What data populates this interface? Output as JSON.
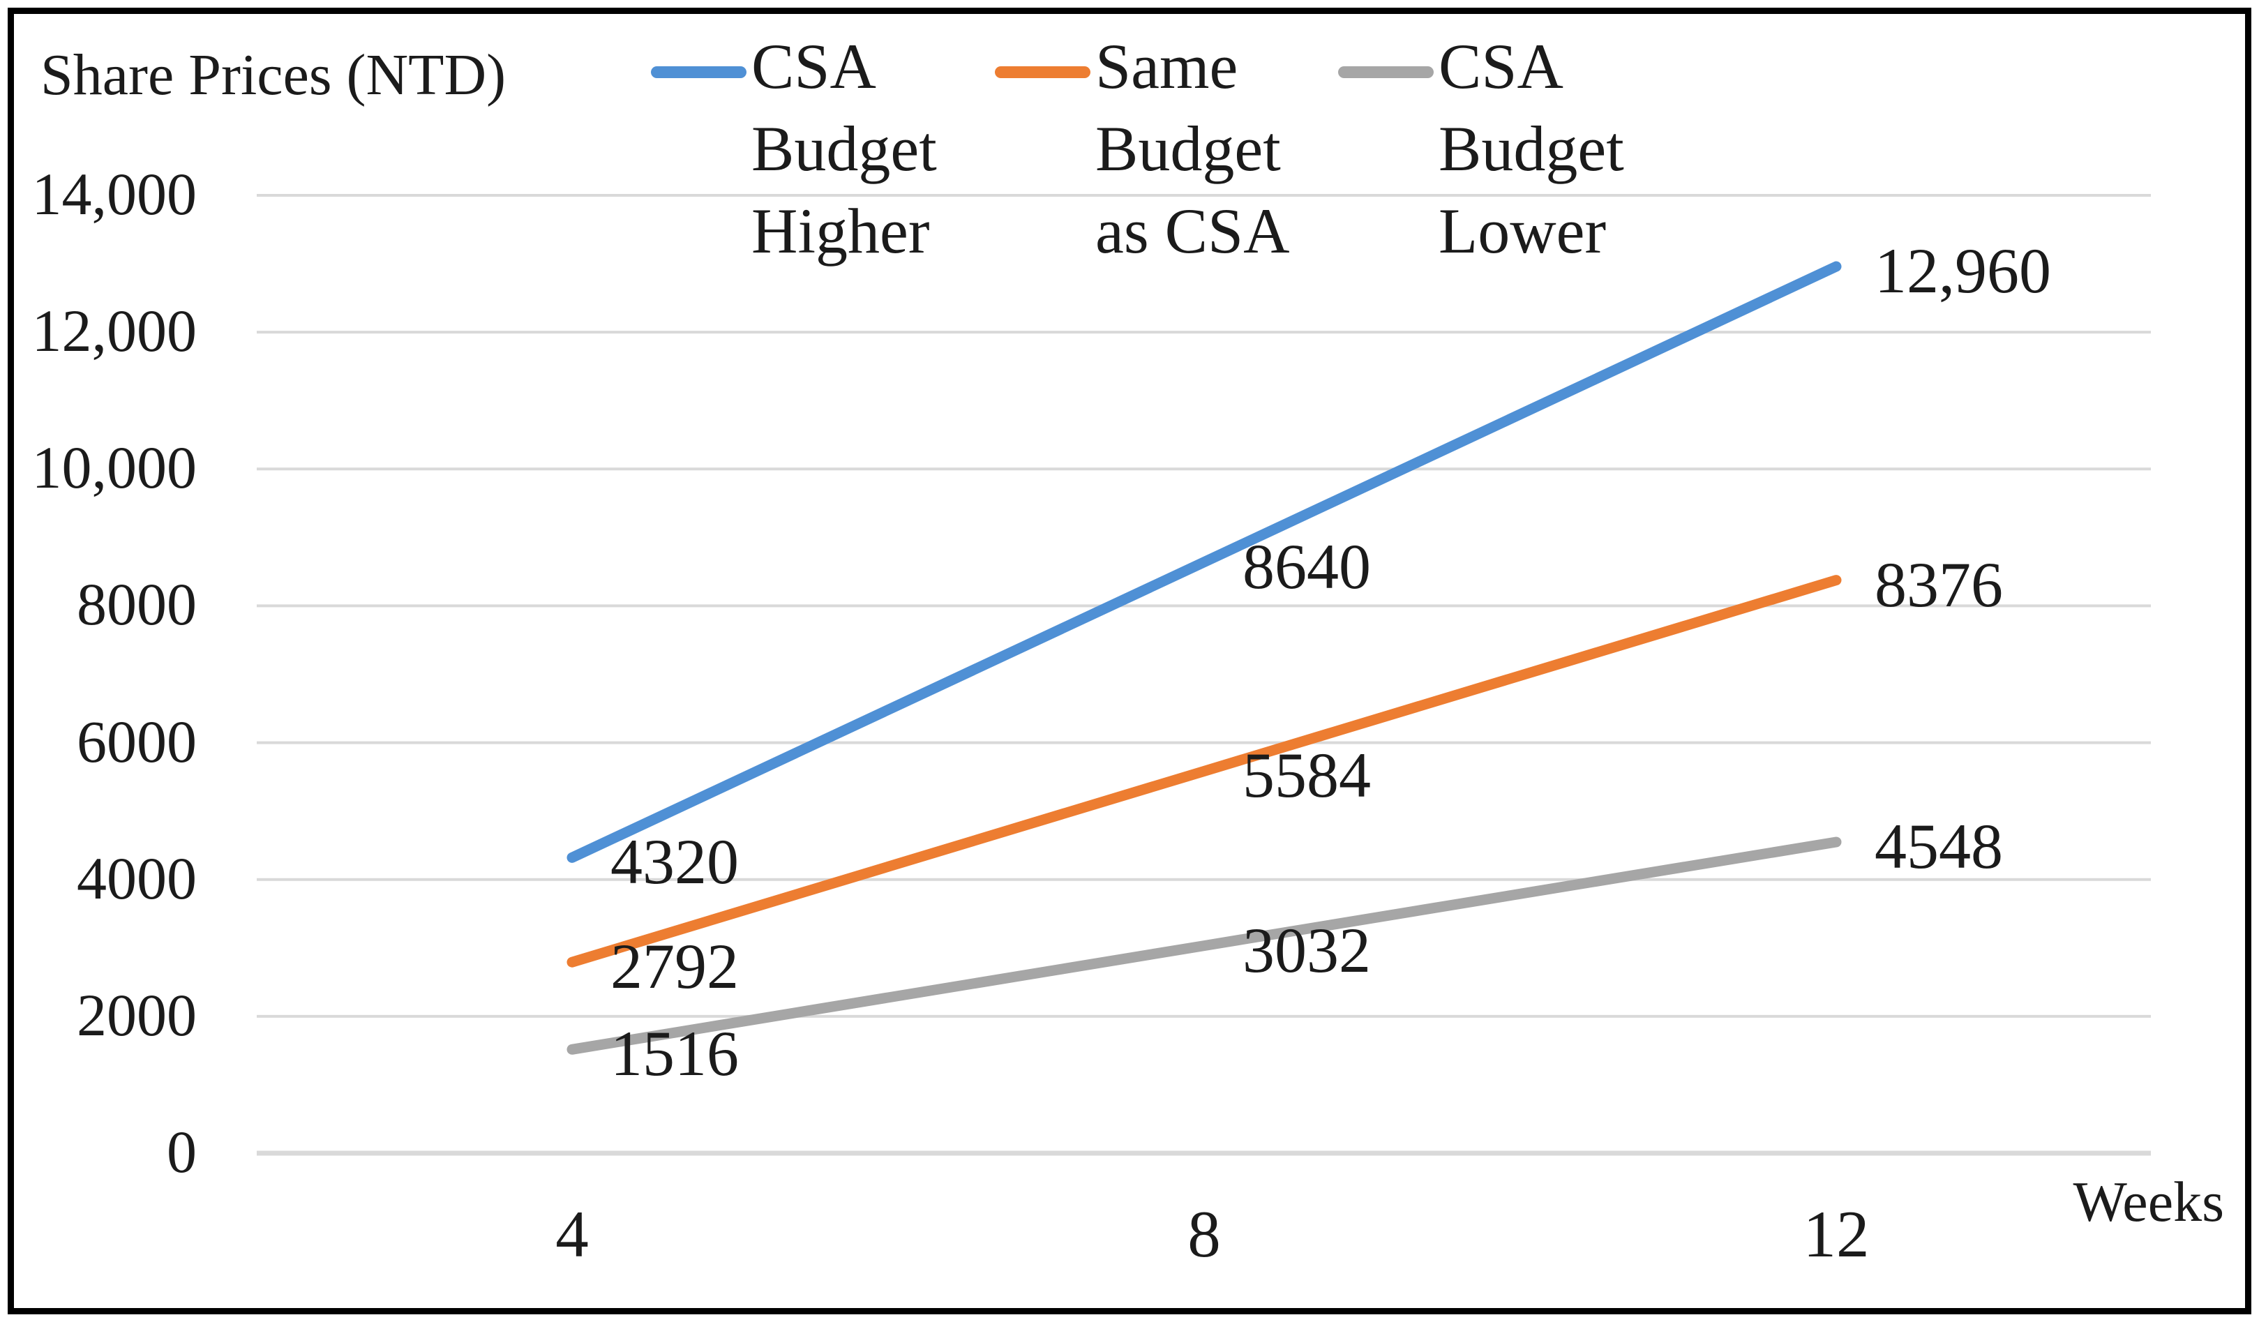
{
  "chart_data": {
    "type": "line",
    "y_axis_title": "Share Prices (NTD)",
    "x_axis_title": "Weeks",
    "x_categories": [
      "4",
      "8",
      "12"
    ],
    "x_values": [
      4,
      8,
      12
    ],
    "series": [
      {
        "name": "CSA Budget Higher",
        "legend_lines": [
          "CSA",
          "Budget",
          "Higher"
        ],
        "color": "#4F90D5",
        "values": [
          4320,
          8640,
          12960
        ],
        "labels": [
          "4320",
          "8640",
          "12,960"
        ]
      },
      {
        "name": "Same Budget as CSA",
        "legend_lines": [
          "Same",
          "Budget",
          "as CSA"
        ],
        "color": "#ED7D31",
        "values": [
          2792,
          5584,
          8376
        ],
        "labels": [
          "2792",
          "5584",
          "8376"
        ]
      },
      {
        "name": "CSA Budget Lower",
        "legend_lines": [
          "CSA",
          "Budget",
          "Lower"
        ],
        "color": "#A6A6A6",
        "values": [
          1516,
          3032,
          4548
        ],
        "labels": [
          "1516",
          "3032",
          "4548"
        ]
      }
    ],
    "y_ticks": [
      {
        "label": "14,000",
        "value": 14000
      },
      {
        "label": "12,000",
        "value": 12000
      },
      {
        "label": "10,000",
        "value": 10000
      },
      {
        "label": "8000",
        "value": 8000
      },
      {
        "label": "6000",
        "value": 6000
      },
      {
        "label": "4000",
        "value": 4000
      },
      {
        "label": "2000",
        "value": 2000
      },
      {
        "label": "0",
        "value": 0
      }
    ],
    "ylim": [
      0,
      14000
    ],
    "grid": true,
    "legend_position": "top",
    "colors": {
      "gridline": "#D9D9D9",
      "axis_line": "#D9D9D9",
      "text": "#1b1b1b",
      "frame_border": "#000000"
    }
  }
}
